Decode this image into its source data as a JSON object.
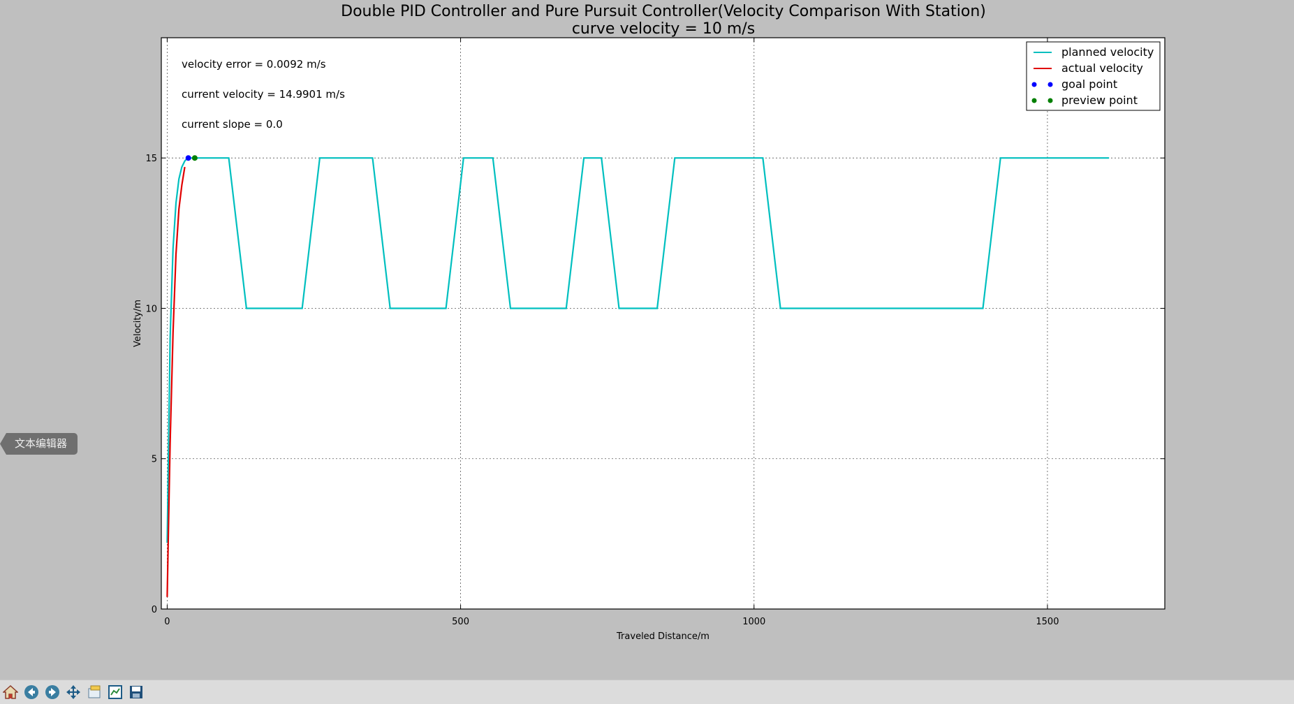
{
  "window": {
    "title_line1": "Double PID Controller and Pure Pursuit Controller(Velocity Comparison With Station)",
    "title_line2": "curve velocity = 10 m/s"
  },
  "side_tab": {
    "label": "文本编辑器"
  },
  "toolbar": {
    "buttons": [
      "home-icon",
      "back-icon",
      "forward-icon",
      "pan-icon",
      "zoom-icon",
      "subplots-icon",
      "save-icon"
    ]
  },
  "chart_data": {
    "type": "line",
    "title": "Double PID Controller and Pure Pursuit Controller(Velocity Comparison With Station)",
    "subtitle": "curve velocity = 10 m/s",
    "xlabel": "Traveled Distance/m",
    "ylabel": "Velocity/m",
    "xlim": [
      -10,
      1700
    ],
    "ylim": [
      0,
      19
    ],
    "xticks": [
      0,
      500,
      1000,
      1500
    ],
    "yticks": [
      0,
      5,
      10,
      15
    ],
    "grid": true,
    "legend_position": "top-right",
    "annotations": [
      "velocity error = 0.0092 m/s",
      "current velocity = 14.9901 m/s",
      "current slope = 0.0"
    ],
    "colors": {
      "planned": "#00bfbf",
      "actual": "#e00000",
      "goal": "#0000ff",
      "preview": "#007f00"
    },
    "series": [
      {
        "name": "planned velocity",
        "x": [
          0,
          2,
          5,
          10,
          15,
          20,
          25,
          30,
          35,
          40,
          105,
          135,
          230,
          260,
          350,
          380,
          475,
          505,
          555,
          585,
          680,
          710,
          740,
          770,
          835,
          865,
          1015,
          1045,
          1390,
          1420,
          1605
        ],
        "y": [
          2.2,
          5,
          9,
          12,
          13.5,
          14.3,
          14.7,
          14.9,
          15,
          15,
          15,
          10,
          10,
          15,
          15,
          10,
          10,
          15,
          15,
          10,
          10,
          15,
          15,
          10,
          10,
          15,
          15,
          10,
          10,
          15,
          15
        ]
      },
      {
        "name": "actual velocity",
        "x": [
          0,
          2,
          5,
          10,
          15,
          20,
          25,
          30
        ],
        "y": [
          0.4,
          2.5,
          5.5,
          9.2,
          11.8,
          13.3,
          14.1,
          14.7
        ]
      },
      {
        "name": "goal point",
        "x": [
          36
        ],
        "y": [
          15
        ]
      },
      {
        "name": "preview point",
        "x": [
          47
        ],
        "y": [
          15
        ]
      }
    ]
  }
}
